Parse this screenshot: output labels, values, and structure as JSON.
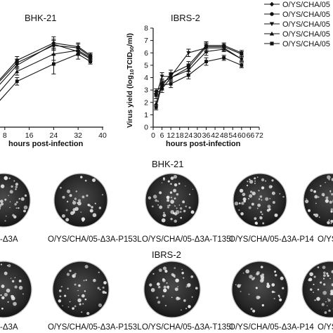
{
  "chart_data": [
    {
      "type": "line",
      "title": "BHK-21",
      "xlabel": "hours post-infection",
      "ylabel": "",
      "xlim": [
        0,
        40
      ],
      "ylim": [
        0,
        8
      ],
      "xticks": [
        "8",
        "16",
        "24",
        "32",
        "40"
      ],
      "x": [
        4,
        12,
        24,
        32,
        36
      ],
      "series": [
        {
          "name": "O/YS/CHA/05",
          "marker": "diamond",
          "values": [
            3.2,
            5.4,
            6.8,
            6.5,
            5.8
          ],
          "err": [
            0.2,
            0.3,
            0.5,
            0.3,
            0.2
          ]
        },
        {
          "name": "O/YS/CHA/05",
          "marker": "circle",
          "values": [
            3.1,
            5.2,
            6.6,
            6.4,
            5.7
          ],
          "err": [
            0.2,
            0.3,
            0.4,
            0.3,
            0.2
          ]
        },
        {
          "name": "O/YS/CHA/05",
          "marker": "triangle-down",
          "values": [
            2.8,
            5.0,
            6.7,
            6.1,
            5.5
          ],
          "err": [
            0.2,
            0.3,
            0.4,
            0.3,
            0.2
          ]
        },
        {
          "name": "O/YS/CHA/05",
          "marker": "triangle-up",
          "values": [
            2.2,
            4.5,
            5.9,
            6.2,
            5.6
          ],
          "err": [
            0.2,
            0.3,
            0.5,
            0.3,
            0.2
          ]
        },
        {
          "name": "O/YS/CHA/05",
          "marker": "square",
          "values": [
            1.5,
            3.7,
            5.1,
            5.9,
            5.3
          ],
          "err": [
            0.2,
            0.3,
            0.8,
            0.4,
            0.2
          ]
        }
      ]
    },
    {
      "type": "line",
      "title": "IBRS-2",
      "xlabel": "hours post-infection",
      "ylabel": "Virus yield (log10TCID50/ml)",
      "xlim": [
        0,
        72
      ],
      "ylim": [
        0,
        8
      ],
      "xticks": [
        "0",
        "6",
        "12",
        "18",
        "24",
        "30",
        "36",
        "42",
        "48",
        "54",
        "60",
        "66",
        "72"
      ],
      "yticks": [
        "0",
        "1",
        "2",
        "3",
        "4",
        "5",
        "6",
        "7",
        "8"
      ],
      "x": [
        2,
        6,
        12,
        24,
        36,
        48,
        60
      ],
      "series": [
        {
          "name": "O/YS/CHA/05",
          "marker": "diamond",
          "values": [
            2.9,
            3.3,
            4.3,
            5.0,
            6.6,
            6.6,
            6.0
          ],
          "err": [
            0.2,
            0.3,
            0.3,
            0.3,
            0.3,
            0.2,
            0.2
          ]
        },
        {
          "name": "O/YS/CHA/05",
          "marker": "circle",
          "values": [
            2.7,
            3.1,
            4.0,
            4.8,
            6.5,
            6.5,
            5.9
          ],
          "err": [
            0.2,
            0.3,
            0.3,
            0.3,
            0.3,
            0.2,
            0.2
          ]
        },
        {
          "name": "O/YS/CHA/05",
          "marker": "triangle-down",
          "values": [
            2.5,
            4.1,
            4.1,
            6.0,
            6.4,
            6.4,
            5.5
          ],
          "err": [
            0.2,
            0.3,
            0.3,
            0.3,
            0.3,
            0.2,
            0.2
          ]
        },
        {
          "name": "O/YS/CHA/05",
          "marker": "triangle-up",
          "values": [
            1.9,
            3.6,
            4.0,
            4.6,
            6.1,
            6.3,
            5.5
          ],
          "err": [
            0.2,
            0.3,
            0.3,
            0.3,
            0.3,
            0.2,
            0.2
          ]
        },
        {
          "name": "O/YS/CHA/05",
          "marker": "square",
          "values": [
            1.6,
            3.4,
            3.5,
            4.2,
            5.3,
            5.6,
            5.0
          ],
          "err": [
            0.2,
            0.3,
            0.3,
            0.3,
            0.3,
            0.2,
            0.2
          ]
        }
      ]
    }
  ],
  "legend": [
    "O/YS/CHA/05",
    "O/YS/CHA/05",
    "O/YS/CHA/05",
    "O/YS/CHA/05",
    "O/YS/CHA/05"
  ],
  "plates": {
    "bhk_title": "BHK-21",
    "ibrs_title": "IBRS-2",
    "bhk_labels": [
      "-Δ3A",
      "O/YS/CHA/05-Δ3A-P153L",
      "O/YS/CHA/05-Δ3A-T135I",
      "O/YS/CHA/05-Δ3A-P14",
      "O/YS"
    ],
    "ibrs_labels": [
      "-Δ3A",
      "O/YS/CHA/05-Δ3A-P153L",
      "O/YS/CHA/05-Δ3A-T135I",
      "O/YS/CHA/05-Δ3A-P14",
      "O/YS"
    ]
  }
}
